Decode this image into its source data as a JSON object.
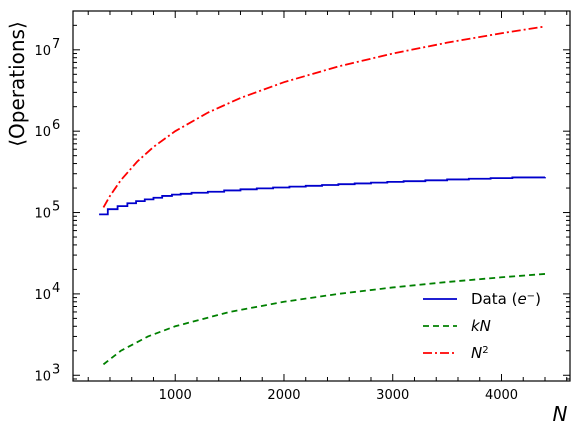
{
  "chart_data": {
    "type": "line",
    "xlabel": "N",
    "ylabel": "⟨Operations⟩",
    "xlim": [
      60,
      4630
    ],
    "ylim": [
      850,
      30000000
    ],
    "yscale": "log",
    "grid": false,
    "legend_placement": "bottom-right",
    "x_ticks": [
      {
        "value": 1000,
        "label": "1000"
      },
      {
        "value": 2000,
        "label": "2000"
      },
      {
        "value": 3000,
        "label": "3000"
      },
      {
        "value": 4000,
        "label": "4000"
      }
    ],
    "y_ticks": [
      {
        "value": 1000,
        "base": "10",
        "exp": "3"
      },
      {
        "value": 10000,
        "base": "10",
        "exp": "4"
      },
      {
        "value": 100000,
        "base": "10",
        "exp": "5"
      },
      {
        "value": 1000000,
        "base": "10",
        "exp": "6"
      },
      {
        "value": 10000000,
        "base": "10",
        "exp": "7"
      }
    ],
    "series": [
      {
        "name": "Data (e⁻)",
        "legend_main": "Data (",
        "legend_italic": "e",
        "legend_sup": "−",
        "legend_tail": ")",
        "style": "step",
        "color": "#0000cc",
        "x": [
          300,
          380,
          470,
          560,
          640,
          720,
          800,
          880,
          970,
          1050,
          1150,
          1300,
          1450,
          1600,
          1750,
          1900,
          2050,
          2200,
          2350,
          2500,
          2650,
          2800,
          2950,
          3100,
          3300,
          3500,
          3700,
          3900,
          4100,
          4400
        ],
        "values": [
          95000,
          110000,
          120000,
          130000,
          138000,
          145000,
          152000,
          160000,
          166000,
          170000,
          175000,
          180000,
          187000,
          193000,
          198000,
          203000,
          208000,
          213000,
          218000,
          223000,
          228000,
          233000,
          238000,
          243000,
          249000,
          255000,
          260000,
          265000,
          270000,
          272000
        ]
      },
      {
        "name": "kN",
        "legend_main": "",
        "legend_italic": "kN",
        "legend_sup": "",
        "legend_tail": "",
        "style": "dashed",
        "color": "#008000",
        "x": [
          340,
          500,
          750,
          1000,
          1500,
          2000,
          2500,
          3000,
          3500,
          4000,
          4400
        ],
        "values": [
          1360,
          2000,
          3000,
          4000,
          6000,
          8000,
          10000,
          12000,
          14000,
          16000,
          17600
        ]
      },
      {
        "name": "N²",
        "legend_main": "",
        "legend_italic": "N",
        "legend_sup": "2",
        "legend_tail": "",
        "style": "dashdot",
        "color": "#ff0000",
        "x": [
          340,
          400,
          500,
          650,
          800,
          1000,
          1300,
          1600,
          2000,
          2500,
          3000,
          3500,
          4000,
          4400
        ],
        "values": [
          115600,
          160000,
          250000,
          422500,
          640000,
          1000000,
          1690000,
          2560000,
          4000000,
          6250000,
          9000000,
          12250000,
          16000000,
          19360000
        ]
      }
    ]
  }
}
